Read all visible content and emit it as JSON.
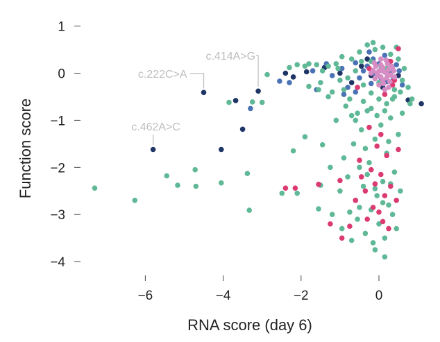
{
  "chart_data": {
    "type": "scatter",
    "xlabel": "RNA score (day 6)",
    "ylabel": "Function score",
    "xlim": [
      -7.6,
      1.3
    ],
    "ylim": [
      -4.3,
      1.3
    ],
    "xticks": [
      -6,
      -4,
      -2,
      0
    ],
    "yticks": [
      1,
      0,
      -1,
      -2,
      -3,
      -4
    ],
    "xtick_labels": [
      "−6",
      "−4",
      "−2",
      "0"
    ],
    "ytick_labels": [
      "1",
      "0",
      "−1",
      "−2",
      "−3",
      "−4"
    ],
    "grid": false,
    "colors": {
      "green": "#5fb896",
      "navy": "#1f3566",
      "blue": "#4a72b5",
      "magenta": "#db3a72",
      "pink": "#d58dc4"
    },
    "annotations": [
      {
        "text": "c.414A>G",
        "x": -3.1,
        "y": -0.38
      },
      {
        "text": "c.222C>A",
        "x": -4.5,
        "y": -0.41
      },
      {
        "text": "c.462A>C",
        "x": -5.8,
        "y": -1.62
      }
    ],
    "series": [
      {
        "color": "navy",
        "points": [
          [
            -5.8,
            -1.62
          ],
          [
            -4.05,
            -1.62
          ],
          [
            -4.5,
            -0.41
          ],
          [
            -3.1,
            -0.38
          ],
          [
            -3.68,
            -0.58
          ],
          [
            -3.5,
            -1.19
          ],
          [
            -2.4,
            0.0
          ],
          [
            -2.2,
            -0.08
          ],
          [
            -1.86,
            0.03
          ],
          [
            -1.4,
            0.12
          ],
          [
            -1.0,
            0.0
          ],
          [
            -0.7,
            -0.2
          ],
          [
            -0.45,
            0.15
          ],
          [
            -0.2,
            -0.05
          ],
          [
            0.1,
            -0.3
          ],
          [
            0.5,
            -0.05
          ],
          [
            0.75,
            -0.57
          ],
          [
            1.09,
            -0.65
          ],
          [
            -0.3,
            0.3
          ]
        ]
      },
      {
        "color": "blue",
        "points": [
          [
            -3.3,
            -0.75
          ],
          [
            -2.55,
            -0.17
          ],
          [
            -1.6,
            -0.35
          ],
          [
            -2.3,
            -0.2
          ],
          [
            -1.2,
            -0.05
          ],
          [
            -0.95,
            0.1
          ],
          [
            -0.8,
            -0.3
          ],
          [
            -0.6,
            0.22
          ],
          [
            -0.5,
            -0.1
          ],
          [
            -0.4,
            0.05
          ],
          [
            -0.3,
            0.15
          ],
          [
            -0.2,
            -0.22
          ],
          [
            -0.15,
            0.3
          ],
          [
            -0.1,
            0.0
          ],
          [
            0.0,
            0.2
          ],
          [
            0.05,
            -0.1
          ],
          [
            0.12,
            0.08
          ],
          [
            0.2,
            -0.18
          ],
          [
            0.25,
            0.25
          ],
          [
            0.3,
            0.0
          ],
          [
            0.38,
            -0.12
          ],
          [
            0.45,
            0.18
          ],
          [
            0.52,
            0.05
          ],
          [
            0.6,
            -0.25
          ],
          [
            -1.7,
            0.05
          ],
          [
            -0.9,
            -0.45
          ],
          [
            -1.35,
            0.2
          ],
          [
            -0.25,
            0.45
          ],
          [
            0.15,
            0.38
          ],
          [
            -0.6,
            -0.4
          ]
        ]
      },
      {
        "color": "green",
        "points": [
          [
            -7.3,
            -2.44
          ],
          [
            -6.27,
            -2.7
          ],
          [
            -5.45,
            -2.18
          ],
          [
            -5.17,
            -2.38
          ],
          [
            -4.72,
            -2.05
          ],
          [
            -4.7,
            -2.4
          ],
          [
            -4.05,
            -2.33
          ],
          [
            -3.85,
            -0.62
          ],
          [
            -3.38,
            -2.13
          ],
          [
            -3.33,
            -2.91
          ],
          [
            -3.25,
            -0.61
          ],
          [
            -3.0,
            -0.62
          ],
          [
            -2.87,
            -0.03
          ],
          [
            -2.2,
            -1.65
          ],
          [
            -1.55,
            -2.88
          ],
          [
            -2.49,
            -2.55
          ],
          [
            -2.1,
            -2.55
          ],
          [
            -1.9,
            -1.35
          ],
          [
            -1.8,
            -0.28
          ],
          [
            -1.55,
            -0.35
          ],
          [
            -1.5,
            -2.38
          ],
          [
            -1.45,
            -1.52
          ],
          [
            -1.3,
            -0.5
          ],
          [
            -1.25,
            -2.0
          ],
          [
            -1.2,
            -3.0
          ],
          [
            -1.1,
            -1.0
          ],
          [
            -1.0,
            -2.5
          ],
          [
            -0.95,
            -3.3
          ],
          [
            -0.9,
            -1.8
          ],
          [
            -0.85,
            -0.7
          ],
          [
            -0.8,
            -2.2
          ],
          [
            -0.75,
            -2.95
          ],
          [
            -0.7,
            -0.9
          ],
          [
            -0.65,
            -1.5
          ],
          [
            -0.6,
            -2.7
          ],
          [
            -0.55,
            -3.1
          ],
          [
            -0.5,
            -2.0
          ],
          [
            -0.45,
            -1.2
          ],
          [
            -0.4,
            -2.4
          ],
          [
            -0.35,
            -3.4
          ],
          [
            -0.3,
            -0.8
          ],
          [
            -0.25,
            -1.9
          ],
          [
            -0.2,
            -2.9
          ],
          [
            -0.15,
            -3.6
          ],
          [
            -0.1,
            -1.4
          ],
          [
            -0.05,
            -2.6
          ],
          [
            0.0,
            -3.2
          ],
          [
            0.05,
            -1.1
          ],
          [
            0.1,
            -2.3
          ],
          [
            0.15,
            -3.5
          ],
          [
            0.2,
            -1.7
          ],
          [
            0.25,
            -2.8
          ],
          [
            0.3,
            -0.95
          ],
          [
            0.35,
            -3.0
          ],
          [
            0.4,
            -2.1
          ],
          [
            0.45,
            -3.3
          ],
          [
            0.5,
            -1.3
          ],
          [
            0.55,
            -2.5
          ],
          [
            0.6,
            -0.85
          ],
          [
            -0.6,
            -1.0
          ],
          [
            -0.4,
            -0.6
          ],
          [
            -0.2,
            -0.75
          ],
          [
            0.0,
            -0.55
          ],
          [
            0.2,
            -0.65
          ],
          [
            0.4,
            -0.5
          ],
          [
            -0.3,
            -2.15
          ],
          [
            -0.1,
            -2.45
          ],
          [
            0.1,
            -2.75
          ],
          [
            0.3,
            -2.35
          ],
          [
            -0.5,
            -2.85
          ],
          [
            -0.7,
            -3.55
          ],
          [
            -0.1,
            -3.75
          ],
          [
            0.15,
            -3.9
          ],
          [
            -0.35,
            -1.6
          ],
          [
            0.25,
            -1.45
          ],
          [
            -0.8,
            -0.1
          ],
          [
            -1.1,
            0.2
          ],
          [
            -1.3,
            0.15
          ],
          [
            -1.6,
            0.18
          ],
          [
            -1.9,
            0.15
          ],
          [
            -2.1,
            0.18
          ],
          [
            -2.3,
            0.12
          ],
          [
            -1.8,
            0.2
          ],
          [
            -1.5,
            -0.2
          ],
          [
            -1.0,
            -0.15
          ],
          [
            -0.7,
            0.3
          ],
          [
            -0.5,
            0.45
          ],
          [
            -0.3,
            0.6
          ],
          [
            -0.1,
            0.5
          ],
          [
            0.1,
            0.55
          ],
          [
            0.3,
            0.4
          ],
          [
            0.5,
            0.3
          ],
          [
            0.65,
            0.1
          ],
          [
            0.75,
            -0.3
          ],
          [
            0.85,
            -0.55
          ],
          [
            -0.95,
            0.35
          ],
          [
            -0.6,
            0.05
          ],
          [
            -0.4,
            -0.25
          ],
          [
            -0.2,
            0.25
          ],
          [
            0.0,
            -0.2
          ],
          [
            0.2,
            0.1
          ],
          [
            0.4,
            -0.35
          ],
          [
            0.6,
            -0.15
          ],
          [
            0.8,
            -0.65
          ],
          [
            -1.2,
            -0.4
          ],
          [
            -0.9,
            -0.35
          ],
          [
            -0.2,
            -0.42
          ],
          [
            0.35,
            -0.55
          ],
          [
            0.55,
            -0.4
          ],
          [
            -0.45,
            0.25
          ],
          [
            -0.15,
            0.65
          ],
          [
            0.05,
            0.15
          ],
          [
            0.45,
            0.55
          ],
          [
            -1.45,
            0.05
          ],
          [
            -1.05,
            0.1
          ],
          [
            -0.75,
            -0.55
          ],
          [
            -0.05,
            -0.9
          ],
          [
            0.15,
            -0.8
          ],
          [
            -0.55,
            -0.85
          ]
        ]
      },
      {
        "color": "magenta",
        "points": [
          [
            -2.4,
            -2.44
          ],
          [
            -2.15,
            -2.44
          ],
          [
            -1.55,
            -2.36
          ],
          [
            -1.25,
            -3.2
          ],
          [
            -0.95,
            -3.5
          ],
          [
            -0.75,
            -3.25
          ],
          [
            -0.6,
            -2.7
          ],
          [
            -0.5,
            -1.85
          ],
          [
            -0.45,
            -2.2
          ],
          [
            -0.35,
            -2.5
          ],
          [
            -0.3,
            -3.1
          ],
          [
            -0.25,
            -1.15
          ],
          [
            -0.2,
            -2.05
          ],
          [
            -0.15,
            -2.85
          ],
          [
            -0.1,
            -2.35
          ],
          [
            -0.05,
            -1.55
          ],
          [
            0.0,
            -2.95
          ],
          [
            0.05,
            -2.15
          ],
          [
            0.1,
            -3.15
          ],
          [
            0.15,
            -2.6
          ],
          [
            0.2,
            -1.75
          ],
          [
            0.25,
            -3.3
          ],
          [
            0.3,
            -2.4
          ],
          [
            0.35,
            -0.25
          ],
          [
            0.45,
            -2.7
          ],
          [
            0.5,
            0.52
          ],
          [
            0.5,
            -1.62
          ],
          [
            0.4,
            -0.15
          ],
          [
            -1.0,
            -2.28
          ],
          [
            -0.55,
            -0.3
          ],
          [
            -0.25,
            0.1
          ],
          [
            0.15,
            -0.45
          ],
          [
            0.3,
            0.25
          ],
          [
            0.05,
            -1.3
          ]
        ]
      },
      {
        "color": "pink",
        "points": [
          [
            -0.05,
            0.0
          ],
          [
            0.0,
            0.05
          ],
          [
            0.05,
            -0.08
          ],
          [
            0.1,
            0.12
          ],
          [
            0.15,
            0.02
          ],
          [
            0.2,
            -0.1
          ],
          [
            0.25,
            0.08
          ],
          [
            0.3,
            -0.04
          ],
          [
            0.35,
            0.1
          ],
          [
            -0.1,
            -0.12
          ],
          [
            -0.15,
            0.06
          ],
          [
            0.05,
            0.18
          ],
          [
            0.12,
            -0.22
          ],
          [
            0.22,
            0.2
          ],
          [
            0.28,
            -0.18
          ],
          [
            -0.08,
            0.15
          ],
          [
            0.18,
            0.28
          ],
          [
            0.0,
            -0.25
          ],
          [
            0.32,
            0.15
          ],
          [
            0.08,
            0.05
          ],
          [
            -0.02,
            -0.05
          ],
          [
            0.25,
            -0.3
          ],
          [
            -0.2,
            0.0
          ],
          [
            0.4,
            -0.08
          ],
          [
            0.15,
            -0.35
          ],
          [
            0.05,
            0.3
          ],
          [
            0.38,
            0.05
          ],
          [
            -0.12,
            0.22
          ],
          [
            0.2,
            0.0
          ],
          [
            0.1,
            -0.15
          ]
        ]
      }
    ]
  }
}
